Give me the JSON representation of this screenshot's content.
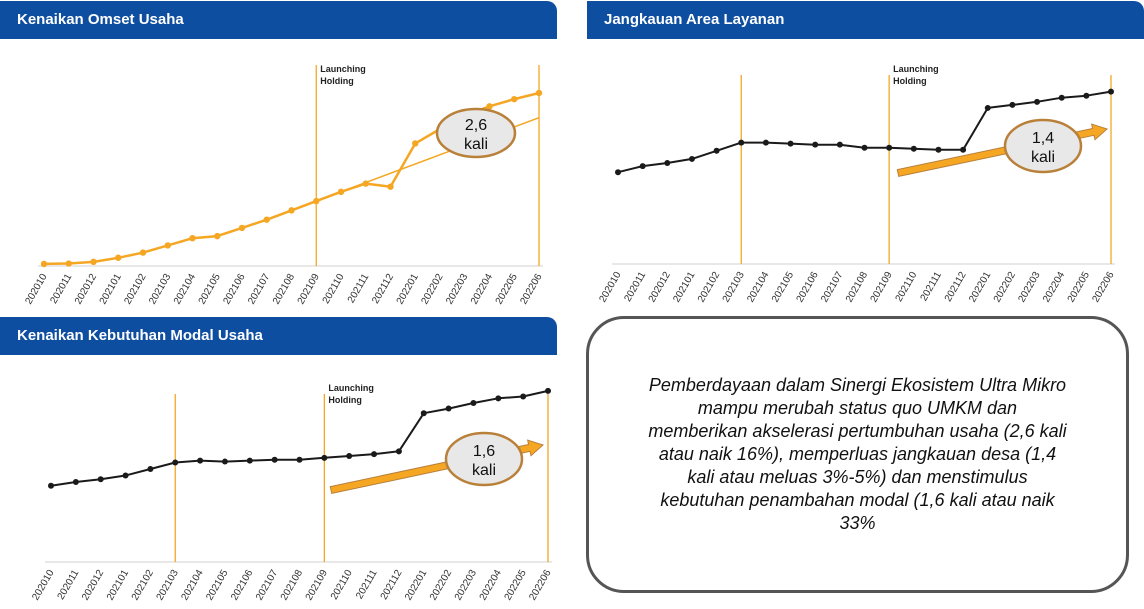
{
  "panels": {
    "omset": {
      "title": "Kenaikan Omset Usaha"
    },
    "area": {
      "title": "Jangkauan Area Layanan"
    },
    "modal": {
      "title": "Kenaikan Kebutuhan Modal Usaha"
    }
  },
  "summary": {
    "text": "Pemberdayaan dalam Sinergi Ekosistem Ultra Mikro mampu merubah status quo UMKM dan memberikan akselerasi pertumbuhan usaha (2,6 kali atau naik 16%), memperluas jangkauan desa (1,4 kali atau meluas 3%-5%) dan menstimulus kebutuhan penambahan modal (1,6 kali atau naik 33%"
  },
  "colors": {
    "header": "#0e4ea0",
    "omset_line": "#f5a623",
    "black_line": "#1a1a1a",
    "vline": "#f5a623",
    "callout_border": "#b9803a",
    "callout_fill": "#e8e8e8"
  },
  "chart_data": [
    {
      "id": "omset",
      "type": "line",
      "title": "Kenaikan Omset Usaha",
      "categories": [
        "202010",
        "202011",
        "202012",
        "202101",
        "202102",
        "202103",
        "202104",
        "202105",
        "202106",
        "202107",
        "202108",
        "202109",
        "202110",
        "202111",
        "202112",
        "202201",
        "202202",
        "202203",
        "202204",
        "202205",
        "202206"
      ],
      "series": [
        {
          "values": [
            1.0,
            1.2,
            2.0,
            4.0,
            6.5,
            10.0,
            13.5,
            14.5,
            18.5,
            22.5,
            27.0,
            31.5,
            36.0,
            40.0,
            38.5,
            59.5,
            66.5,
            73.0,
            77.5,
            81.0,
            84.0
          ]
        }
      ],
      "trend": {
        "from": 31.5,
        "to": 72.0
      },
      "ylim": [
        0,
        100
      ],
      "annotations": [
        {
          "line1": "Launching",
          "line2": "Holding",
          "at": "202109"
        },
        {
          "line1": "2,6",
          "line2": "kali"
        }
      ],
      "vlines": [
        "202109",
        "202206"
      ]
    },
    {
      "id": "area",
      "type": "line",
      "title": "Jangkauan Area Layanan",
      "categories": [
        "202010",
        "202011",
        "202012",
        "202101",
        "202102",
        "202103",
        "202104",
        "202105",
        "202106",
        "202107",
        "202108",
        "202109",
        "202110",
        "202111",
        "202112",
        "202201",
        "202202",
        "202203",
        "202204",
        "202205",
        "202206"
      ],
      "series": [
        {
          "values": [
            45.0,
            48.0,
            49.5,
            51.5,
            55.5,
            59.5,
            59.5,
            59.0,
            58.5,
            58.5,
            57.0,
            57.0,
            56.5,
            56.0,
            56.0,
            76.5,
            78.0,
            79.5,
            81.5,
            82.5,
            84.5
          ]
        }
      ],
      "ylim": [
        0,
        100
      ],
      "annotations": [
        {
          "line1": "Launching",
          "line2": "Holding",
          "at": "202109"
        },
        {
          "line1": "1,4",
          "line2": "kali"
        }
      ],
      "vlines": [
        "202103",
        "202109",
        "202206"
      ]
    },
    {
      "id": "modal",
      "type": "line",
      "title": "Kenaikan Kebutuhan Modal Usaha",
      "categories": [
        "202010",
        "202011",
        "202012",
        "202101",
        "202102",
        "202103",
        "202104",
        "202105",
        "202106",
        "202107",
        "202108",
        "202109",
        "202110",
        "202111",
        "202112",
        "202201",
        "202202",
        "202203",
        "202204",
        "202205",
        "202206"
      ],
      "series": [
        {
          "values": [
            41.0,
            43.0,
            44.5,
            46.5,
            50.0,
            53.5,
            54.5,
            54.0,
            54.5,
            55.0,
            55.0,
            56.0,
            57.0,
            58.0,
            59.5,
            80.0,
            82.5,
            85.5,
            88.0,
            89.0,
            92.0
          ]
        }
      ],
      "ylim": [
        0,
        100
      ],
      "annotations": [
        {
          "line1": "Launching",
          "line2": "Holding",
          "at": "202109"
        },
        {
          "line1": "1,6",
          "line2": "kali"
        }
      ],
      "vlines": [
        "202103",
        "202109",
        "202206"
      ]
    }
  ]
}
